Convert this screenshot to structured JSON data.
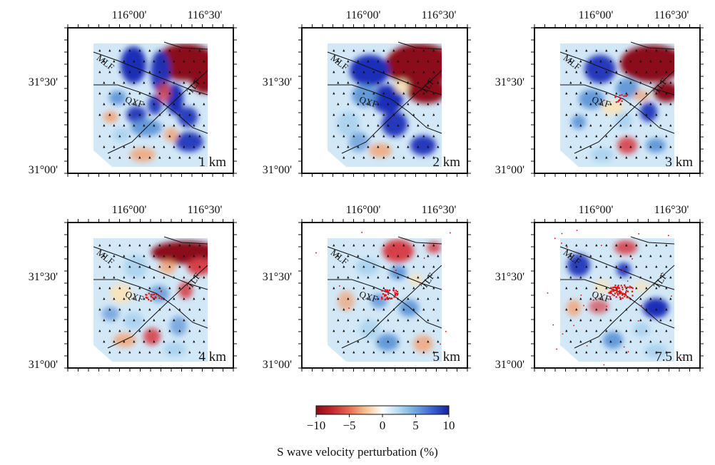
{
  "colors": {
    "red_strong": "#8b0a1a",
    "red": "#d6404a",
    "orange": "#f4a070",
    "cream": "#fbe3b8",
    "white": "#ffffff",
    "light_blue": "#a8d2ee",
    "blue": "#5a92d6",
    "deep_blue": "#1a2fb8",
    "fault_line": "#111111",
    "event_red": "#e81010"
  },
  "axes": {
    "lon_ticks": [
      "116°00'",
      "116°30'"
    ],
    "lat_ticks": [
      "31°30'",
      "31°00'"
    ]
  },
  "faults": {
    "mlf": "MLF",
    "tlf": "TLF",
    "qxf": "QXF"
  },
  "panels": [
    {
      "depth_label": "1 km",
      "events": "none"
    },
    {
      "depth_label": "2 km",
      "events": "none"
    },
    {
      "depth_label": "3 km",
      "events": "few"
    },
    {
      "depth_label": "4 km",
      "events": "some"
    },
    {
      "depth_label": "5 km",
      "events": "many"
    },
    {
      "depth_label": "7.5 km",
      "events": "dense"
    }
  ],
  "colorbar": {
    "ticks": [
      "−10",
      "−5",
      "0",
      "5",
      "10"
    ],
    "label": "S wave velocity perturbation (%)",
    "vmin": -10,
    "vmax": 10
  }
}
